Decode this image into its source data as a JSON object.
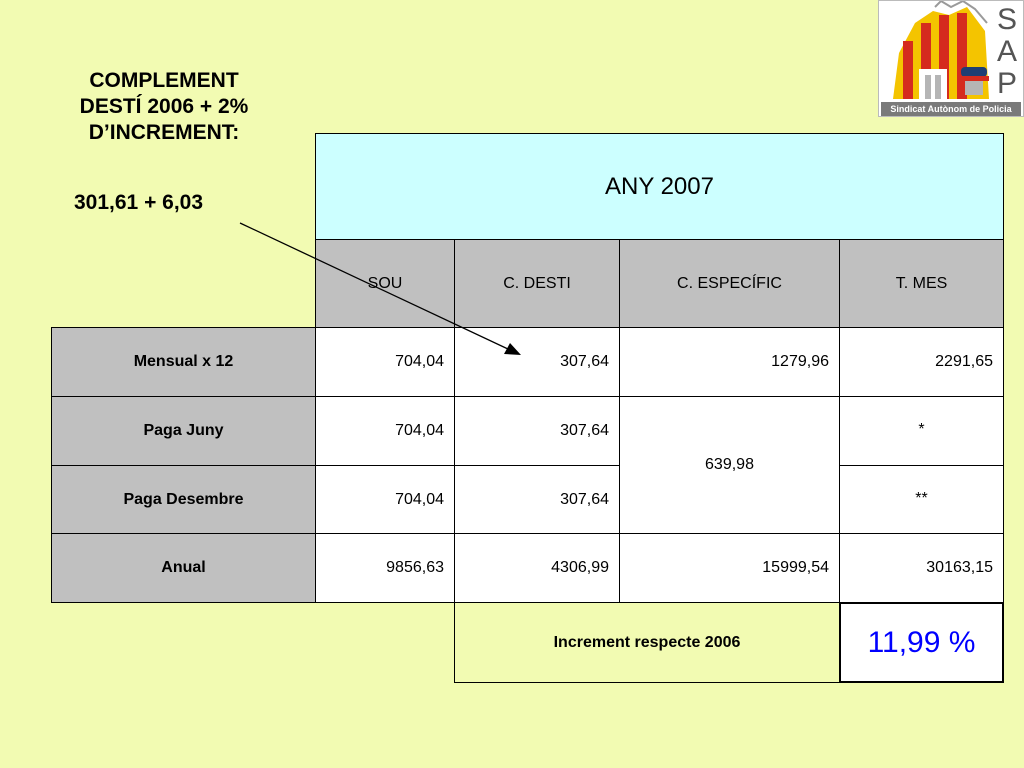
{
  "heading": {
    "line1": "COMPLEMENT",
    "line2": "DESTÍ 2006 + 2%",
    "line3": "D’INCREMENT:",
    "formula": "301,61 + 6,03"
  },
  "table": {
    "year_header": "ANY 2007",
    "columns": [
      "SOU",
      "C. DESTI",
      "C. ESPECÍFIC",
      "T. MES"
    ],
    "rows": [
      {
        "label": "Mensual x 12",
        "sou": "704,04",
        "desti": "307,64",
        "especific": "1279,96",
        "tmes": "2291,65"
      },
      {
        "label": "Paga Juny",
        "sou": "704,04",
        "desti": "307,64",
        "tmes": "*"
      },
      {
        "label": "Paga Desembre",
        "sou": "704,04",
        "desti": "307,64",
        "tmes": "**"
      },
      {
        "label": "Anual",
        "sou": "9856,63",
        "desti": "4306,99",
        "especific": "15999,54",
        "tmes": "30163,15"
      }
    ],
    "merged_especific": "639,98",
    "increment_label": "Increment respecte 2006",
    "increment_value": "11,99 %"
  },
  "logo": {
    "letters": [
      "S",
      "A",
      "P"
    ],
    "caption": "Sindicat Autònom de Policia"
  },
  "colors": {
    "background": "#f2fbb2",
    "year_header_bg": "#ccffff",
    "header_bg": "#c0c0c0",
    "increment_text": "#0000ff"
  }
}
